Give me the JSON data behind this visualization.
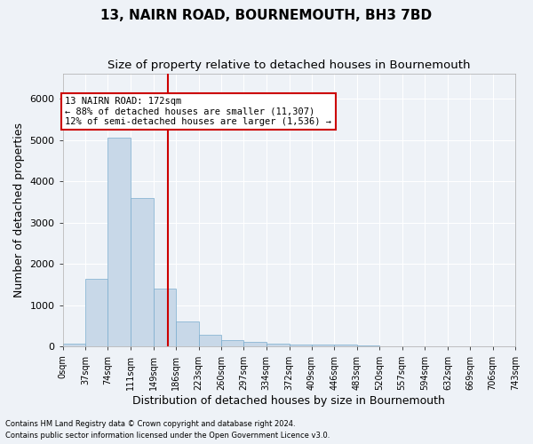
{
  "title": "13, NAIRN ROAD, BOURNEMOUTH, BH3 7BD",
  "subtitle": "Size of property relative to detached houses in Bournemouth",
  "xlabel": "Distribution of detached houses by size in Bournemouth",
  "ylabel": "Number of detached properties",
  "bar_edges": [
    0,
    37,
    74,
    111,
    149,
    186,
    223,
    260,
    297,
    334,
    372,
    409,
    446,
    483,
    520,
    557,
    594,
    632,
    669,
    706,
    743
  ],
  "bar_heights": [
    75,
    1650,
    5050,
    3600,
    1400,
    620,
    290,
    150,
    110,
    80,
    60,
    55,
    45,
    35,
    0,
    0,
    0,
    0,
    0,
    0
  ],
  "bar_color": "#c8d8e8",
  "bar_edge_color": "#7aacce",
  "vline_x": 172,
  "vline_color": "#cc0000",
  "ylim": [
    0,
    6600
  ],
  "annotation_text": "13 NAIRN ROAD: 172sqm\n← 88% of detached houses are smaller (11,307)\n12% of semi-detached houses are larger (1,536) →",
  "annotation_box_color": "#ffffff",
  "annotation_box_edge": "#cc0000",
  "footnote1": "Contains HM Land Registry data © Crown copyright and database right 2024.",
  "footnote2": "Contains public sector information licensed under the Open Government Licence v3.0.",
  "tick_labels": [
    "0sqm",
    "37sqm",
    "74sqm",
    "111sqm",
    "149sqm",
    "186sqm",
    "223sqm",
    "260sqm",
    "297sqm",
    "334sqm",
    "372sqm",
    "409sqm",
    "446sqm",
    "483sqm",
    "520sqm",
    "557sqm",
    "594sqm",
    "632sqm",
    "669sqm",
    "706sqm",
    "743sqm"
  ],
  "background_color": "#eef2f7",
  "grid_color": "#ffffff",
  "title_fontsize": 11,
  "subtitle_fontsize": 9.5,
  "label_fontsize": 9,
  "tick_fontsize": 7,
  "annot_fontsize": 7.5
}
